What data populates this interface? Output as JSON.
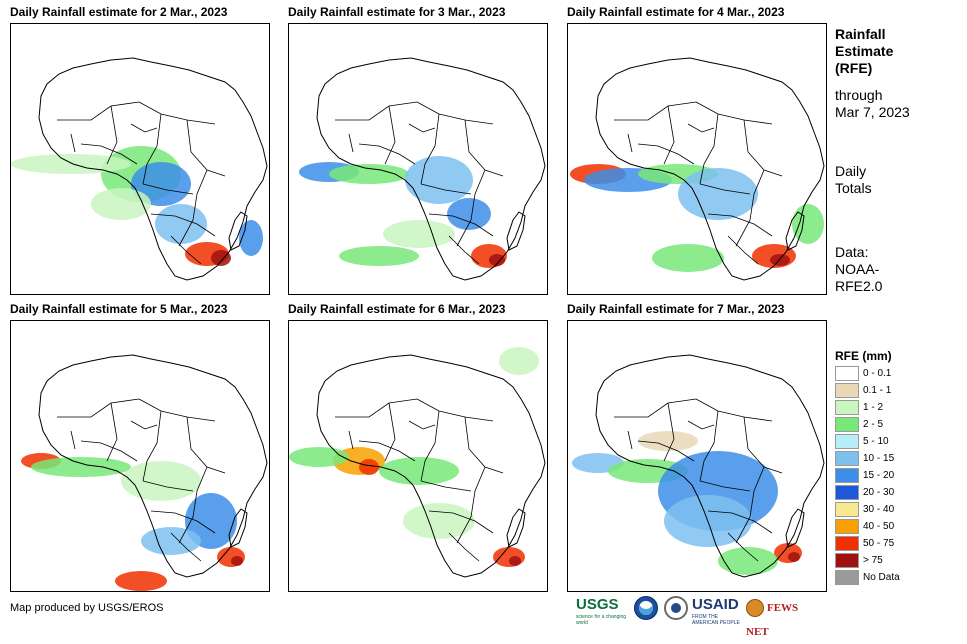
{
  "panels": [
    {
      "title": "Daily Rainfall estimate for 2 Mar., 2023"
    },
    {
      "title": "Daily Rainfall estimate for 3 Mar., 2023"
    },
    {
      "title": "Daily Rainfall estimate for 4 Mar., 2023"
    },
    {
      "title": "Daily Rainfall estimate for 5 Mar., 2023"
    },
    {
      "title": "Daily Rainfall estimate for 6 Mar., 2023"
    },
    {
      "title": "Daily Rainfall estimate for 7 Mar., 2023"
    }
  ],
  "sidebar": {
    "title_lines": [
      "Rainfall",
      "Estimate",
      "(RFE)"
    ],
    "through_lines": [
      "through",
      "Mar 7, 2023"
    ],
    "totals_lines": [
      "Daily",
      "Totals"
    ],
    "data_lines": [
      "Data:",
      "NOAA-",
      "RFE2.0"
    ]
  },
  "legend": {
    "title": "RFE (mm)",
    "items": [
      {
        "label": "0 - 0.1",
        "color": "#ffffff"
      },
      {
        "label": "0.1 - 1",
        "color": "#e8d8b8"
      },
      {
        "label": "1 - 2",
        "color": "#c8f5c0"
      },
      {
        "label": "2 - 5",
        "color": "#78e878"
      },
      {
        "label": "5 - 10",
        "color": "#b8eef8"
      },
      {
        "label": "10 - 15",
        "color": "#7cc0f0"
      },
      {
        "label": "15 - 20",
        "color": "#3c8ee8"
      },
      {
        "label": "20 - 30",
        "color": "#1c58d8"
      },
      {
        "label": "30 - 40",
        "color": "#f8e890"
      },
      {
        "label": "40 - 50",
        "color": "#f8a000"
      },
      {
        "label": "50 - 75",
        "color": "#f03000"
      },
      {
        "label": "> 75",
        "color": "#a01010"
      },
      {
        "label": "No Data",
        "color": "#9a9a9a"
      }
    ]
  },
  "footer": {
    "credit": "Map produced by USGS/EROS",
    "logos": {
      "usgs": "USGS",
      "usgs_tagline": "science for a changing world",
      "usaid": "USAID",
      "usaid_tagline": "FROM THE AMERICAN PEOPLE",
      "fews": "FEWS NET"
    }
  }
}
